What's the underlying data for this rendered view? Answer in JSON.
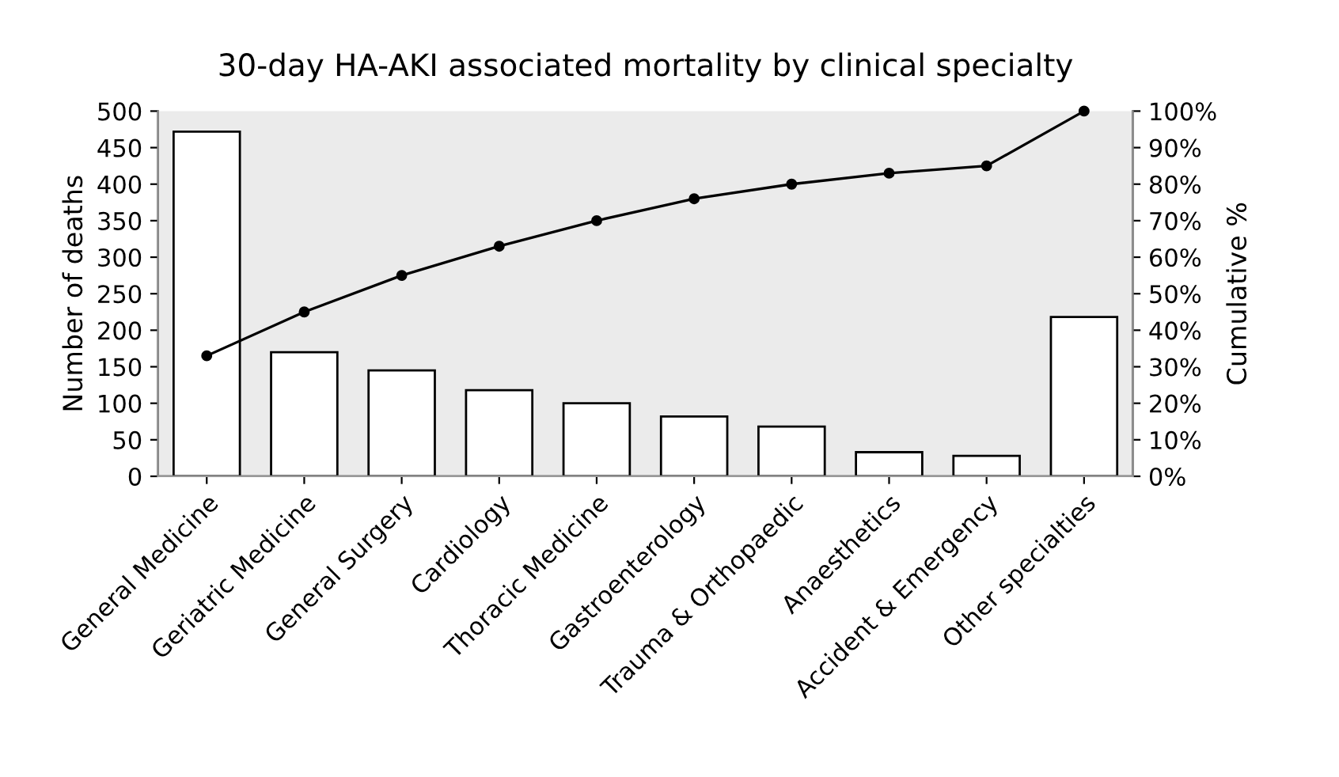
{
  "chart_data": {
    "type": "bar",
    "title": "30-day HA-AKI associated mortality by clinical specialty",
    "ylabel": "Number of deaths",
    "y2label": "Cumulative %",
    "categories": [
      "General Medicine",
      "Geriatric Medicine",
      "General Surgery",
      "Cardiology",
      "Thoracic Medicine",
      "Gastroenterology",
      "Trauma & Orthopaedic",
      "Anaesthetics",
      "Accident & Emergency",
      "Other specialties"
    ],
    "series": [
      {
        "color": "#ffffff",
        "values": [
          472,
          170,
          145,
          118,
          100,
          82,
          68,
          33,
          28,
          218
        ]
      },
      {
        "type": "line",
        "axis": "y2",
        "color": "#000000",
        "marker": "circle",
        "values": [
          33,
          45,
          55,
          63,
          70,
          76,
          80,
          83,
          85,
          100
        ]
      }
    ],
    "ylim": [
      0,
      500
    ],
    "yticks": [
      0,
      50,
      100,
      150,
      200,
      250,
      300,
      350,
      400,
      450,
      500
    ],
    "y2lim": [
      0,
      100
    ],
    "y2ticks": [
      {
        "value": 0,
        "label": "0%"
      },
      {
        "value": 10,
        "label": "10%"
      },
      {
        "value": 20,
        "label": "20%"
      },
      {
        "value": 30,
        "label": "30%"
      },
      {
        "value": 40,
        "label": "40%"
      },
      {
        "value": 50,
        "label": "50%"
      },
      {
        "value": 60,
        "label": "60%"
      },
      {
        "value": 70,
        "label": "70%"
      },
      {
        "value": 80,
        "label": "80%"
      },
      {
        "value": 90,
        "label": "90%"
      },
      {
        "value": 100,
        "label": "100%"
      }
    ],
    "grid": false
  }
}
